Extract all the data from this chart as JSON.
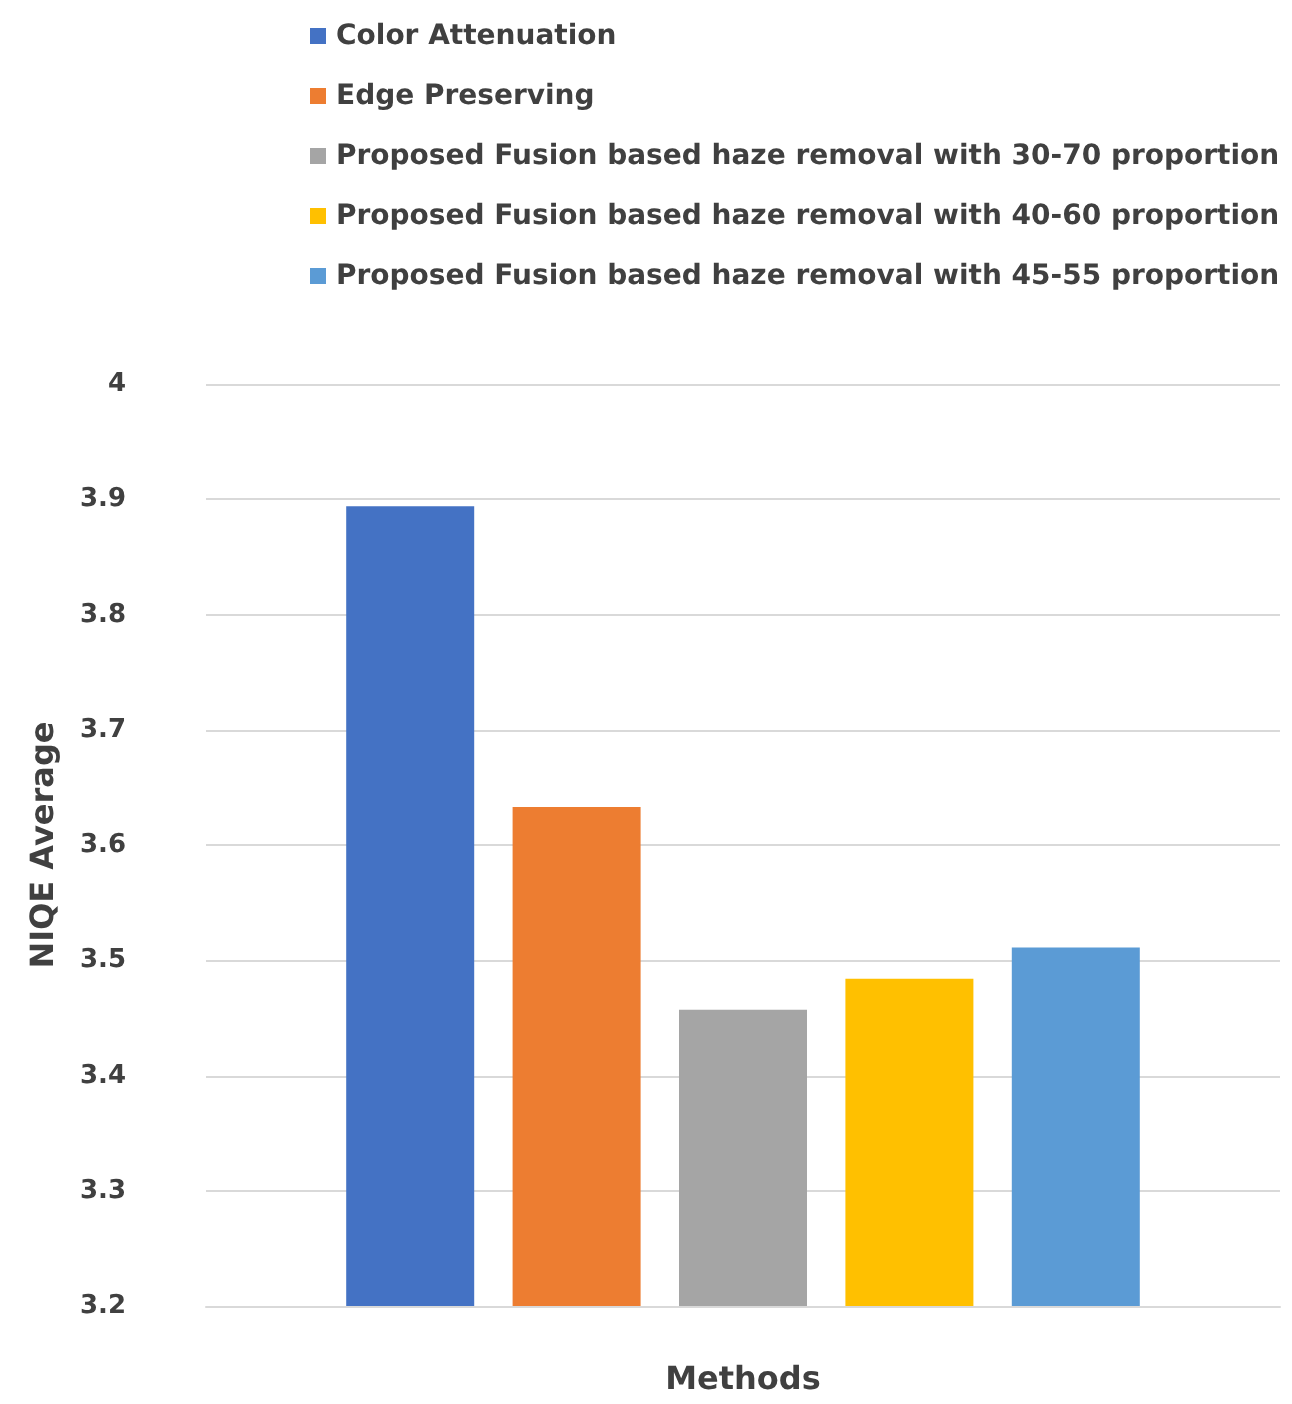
{
  "chart_data": {
    "type": "bar",
    "xlabel": "Methods",
    "ylabel": "NIQE Average",
    "categories": [
      null
    ],
    "series": [
      {
        "name": "Color Attenuation",
        "color": "#4472c4",
        "values": [
          3.894
        ]
      },
      {
        "name": "Edge Preserving",
        "color": "#ed7d31",
        "values": [
          3.633
        ]
      },
      {
        "name": "Proposed Fusion based haze removal with 30-70 proportion",
        "color": "#a5a5a5",
        "values": [
          3.457
        ]
      },
      {
        "name": "Proposed Fusion based haze removal with 40-60 proportion",
        "color": "#ffc000",
        "values": [
          3.484
        ]
      },
      {
        "name": "Proposed Fusion based haze removal with 45-55 proportion",
        "color": "#5b9bd5",
        "values": [
          3.511
        ]
      }
    ],
    "ylim": [
      3.2,
      4
    ],
    "yticks": [
      3.2,
      3.3,
      3.4,
      3.5,
      3.6,
      3.7,
      3.8,
      3.9,
      4
    ],
    "grid": "y",
    "legend": "top",
    "tick_labels": "y"
  }
}
